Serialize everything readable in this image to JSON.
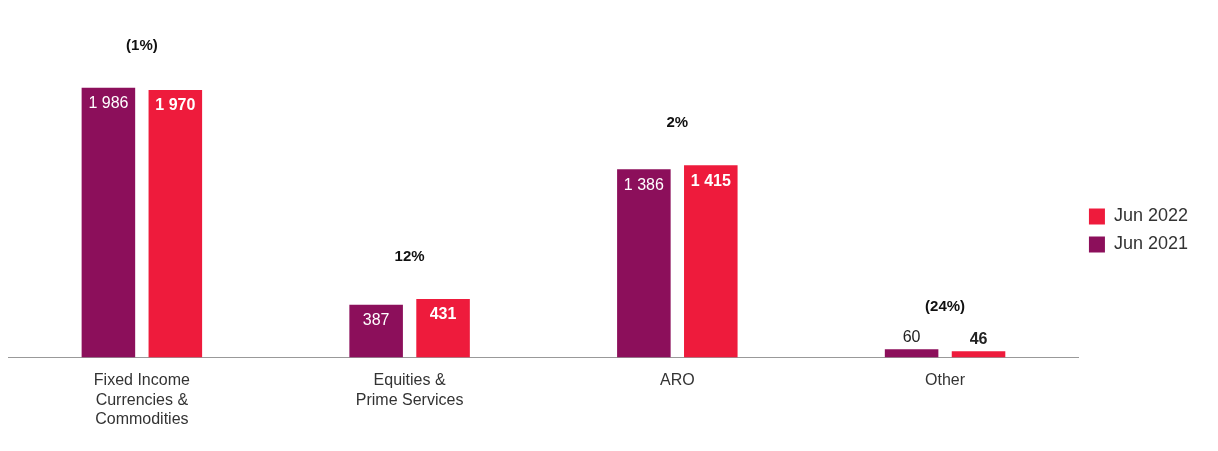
{
  "chart_data": {
    "type": "bar",
    "categories": [
      "Fixed Income Currencies & Commodities",
      "Equities & Prime Services",
      "ARO",
      "Other"
    ],
    "series": [
      {
        "name": "Jun 2021",
        "color": "#8c0f5b",
        "values": [
          1986,
          387,
          1386,
          60
        ],
        "value_labels": [
          "1 986",
          "387",
          "1 386",
          "60"
        ]
      },
      {
        "name": "Jun 2022",
        "color": "#ee1b3c",
        "values": [
          1970,
          431,
          1415,
          46
        ],
        "value_labels": [
          "1 970",
          "431",
          "1 415",
          "46"
        ]
      }
    ],
    "grid": false,
    "legend": "right",
    "annotations": [
      "(1%)",
      "12%",
      "2%",
      "(24%)"
    ]
  }
}
